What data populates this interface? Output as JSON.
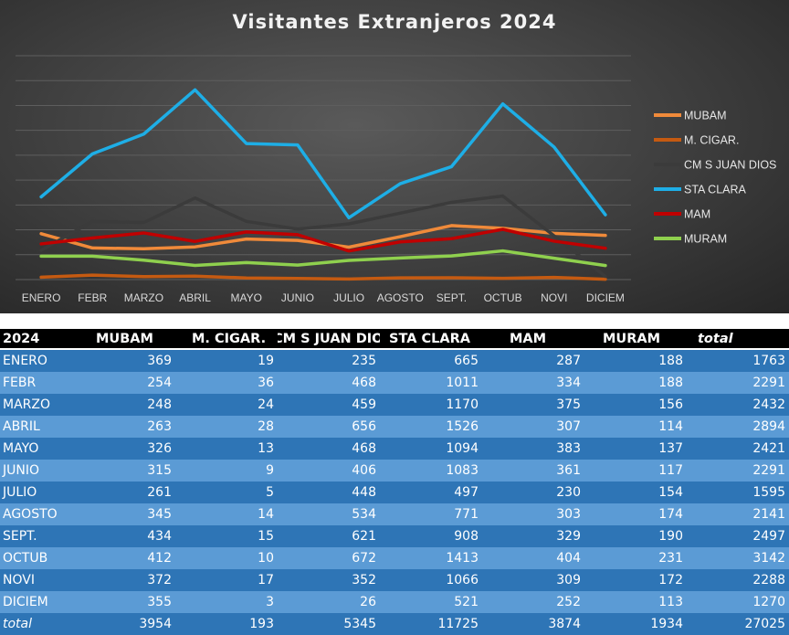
{
  "chart_data": {
    "type": "line",
    "title": "Visitantes Extranjeros 2024",
    "categories": [
      "ENERO",
      "FEBR",
      "MARZO",
      "ABRIL",
      "MAYO",
      "JUNIO",
      "JULIO",
      "AGOSTO",
      "SEPT.",
      "OCTUB",
      "NOVI",
      "DICIEM"
    ],
    "ylim": [
      0,
      1800
    ],
    "y_grid_step": 200,
    "grid": true,
    "y_tick_labels_shown": false,
    "legend_placement": "right",
    "series": [
      {
        "name": "MUBAM",
        "color": "#f08a3a",
        "values": [
          369,
          254,
          248,
          263,
          326,
          315,
          261,
          345,
          434,
          412,
          372,
          355
        ]
      },
      {
        "name": "M. CIGAR.",
        "color": "#c55a11",
        "values": [
          19,
          36,
          24,
          28,
          13,
          9,
          5,
          14,
          15,
          10,
          17,
          3
        ]
      },
      {
        "name": "CM S JUAN DIOS",
        "color": "#3b3b3b",
        "values": [
          235,
          468,
          459,
          656,
          468,
          406,
          448,
          534,
          621,
          672,
          352,
          26
        ]
      },
      {
        "name": "STA CLARA",
        "color": "#1eaee6",
        "values": [
          665,
          1011,
          1170,
          1526,
          1094,
          1083,
          497,
          771,
          908,
          1413,
          1066,
          521
        ]
      },
      {
        "name": "MAM",
        "color": "#c00000",
        "values": [
          287,
          334,
          375,
          307,
          383,
          361,
          230,
          303,
          329,
          404,
          309,
          252
        ]
      },
      {
        "name": "MURAM",
        "color": "#8fd04e",
        "values": [
          188,
          188,
          156,
          114,
          137,
          117,
          154,
          174,
          190,
          231,
          172,
          113
        ]
      }
    ]
  },
  "table": {
    "headers": [
      "2024",
      "MUBAM",
      "M. CIGAR.",
      "CM S JUAN DIOS",
      "STA CLARA",
      "MAM",
      "MURAM",
      "total"
    ],
    "rows": [
      [
        "ENERO",
        "369",
        "19",
        "235",
        "665",
        "287",
        "188",
        "1763"
      ],
      [
        "FEBR",
        "254",
        "36",
        "468",
        "1011",
        "334",
        "188",
        "2291"
      ],
      [
        "MARZO",
        "248",
        "24",
        "459",
        "1170",
        "375",
        "156",
        "2432"
      ],
      [
        "ABRIL",
        "263",
        "28",
        "656",
        "1526",
        "307",
        "114",
        "2894"
      ],
      [
        "MAYO",
        "326",
        "13",
        "468",
        "1094",
        "383",
        "137",
        "2421"
      ],
      [
        "JUNIO",
        "315",
        "9",
        "406",
        "1083",
        "361",
        "117",
        "2291"
      ],
      [
        "JULIO",
        "261",
        "5",
        "448",
        "497",
        "230",
        "154",
        "1595"
      ],
      [
        "AGOSTO",
        "345",
        "14",
        "534",
        "771",
        "303",
        "174",
        "2141"
      ],
      [
        "SEPT.",
        "434",
        "15",
        "621",
        "908",
        "329",
        "190",
        "2497"
      ],
      [
        "OCTUB",
        "412",
        "10",
        "672",
        "1413",
        "404",
        "231",
        "3142"
      ],
      [
        "NOVI",
        "372",
        "17",
        "352",
        "1066",
        "309",
        "172",
        "2288"
      ],
      [
        "DICIEM",
        "355",
        "3",
        "26",
        "521",
        "252",
        "113",
        "1270"
      ],
      [
        "total",
        "3954",
        "193",
        "5345",
        "11725",
        "3874",
        "1934",
        "27025"
      ]
    ]
  }
}
